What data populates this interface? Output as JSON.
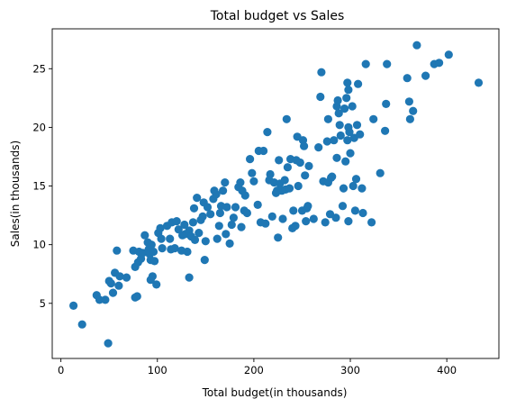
{
  "chart_data": {
    "type": "scatter",
    "title": "Total budget vs Sales",
    "xlabel": "Total budget(in thousands)",
    "ylabel": "Sales(in thousands)",
    "xlim": [
      -9,
      454
    ],
    "ylim": [
      0.3,
      28.4
    ],
    "xticks": [
      0,
      100,
      200,
      300,
      400
    ],
    "yticks": [
      5,
      10,
      15,
      20,
      25
    ],
    "grid": false,
    "marker_color": "#1f77b4",
    "points": [
      [
        13,
        4.8
      ],
      [
        22,
        3.2
      ],
      [
        37,
        5.7
      ],
      [
        40,
        5.3
      ],
      [
        46,
        5.3
      ],
      [
        49,
        1.6
      ],
      [
        50,
        6.9
      ],
      [
        52,
        6.7
      ],
      [
        54,
        5.9
      ],
      [
        56,
        7.6
      ],
      [
        58,
        9.5
      ],
      [
        60,
        6.5
      ],
      [
        61,
        7.3
      ],
      [
        68,
        7.2
      ],
      [
        75,
        9.5
      ],
      [
        77,
        8.1
      ],
      [
        77,
        5.5
      ],
      [
        79,
        5.6
      ],
      [
        80,
        8.5
      ],
      [
        81,
        9.4
      ],
      [
        83,
        8.8
      ],
      [
        85,
        9.3
      ],
      [
        87,
        10.8
      ],
      [
        90,
        10.2
      ],
      [
        91,
        9.6
      ],
      [
        92,
        9.2
      ],
      [
        93,
        7.0
      ],
      [
        93,
        8.7
      ],
      [
        94,
        10.0
      ],
      [
        95,
        7.3
      ],
      [
        96,
        9.4
      ],
      [
        97,
        8.6
      ],
      [
        99,
        6.6
      ],
      [
        101,
        11.0
      ],
      [
        103,
        11.4
      ],
      [
        104,
        10.5
      ],
      [
        105,
        9.7
      ],
      [
        110,
        11.6
      ],
      [
        113,
        10.5
      ],
      [
        114,
        9.6
      ],
      [
        115,
        11.9
      ],
      [
        118,
        9.7
      ],
      [
        120,
        12.0
      ],
      [
        122,
        11.3
      ],
      [
        125,
        9.5
      ],
      [
        126,
        10.8
      ],
      [
        128,
        11.7
      ],
      [
        129,
        10.9
      ],
      [
        131,
        9.4
      ],
      [
        133,
        11.2
      ],
      [
        133,
        7.2
      ],
      [
        135,
        10.7
      ],
      [
        137,
        11.9
      ],
      [
        138,
        13.1
      ],
      [
        139,
        10.4
      ],
      [
        141,
        14.0
      ],
      [
        143,
        11.0
      ],
      [
        145,
        12.1
      ],
      [
        147,
        12.4
      ],
      [
        148,
        13.6
      ],
      [
        149,
        8.7
      ],
      [
        150,
        10.3
      ],
      [
        152,
        13.2
      ],
      [
        155,
        12.6
      ],
      [
        158,
        13.9
      ],
      [
        159,
        14.6
      ],
      [
        161,
        14.3
      ],
      [
        162,
        10.5
      ],
      [
        164,
        11.6
      ],
      [
        165,
        12.7
      ],
      [
        166,
        13.3
      ],
      [
        168,
        14.6
      ],
      [
        170,
        15.3
      ],
      [
        171,
        10.9
      ],
      [
        172,
        13.2
      ],
      [
        175,
        10.1
      ],
      [
        177,
        11.7
      ],
      [
        179,
        12.3
      ],
      [
        181,
        13.2
      ],
      [
        184,
        14.9
      ],
      [
        186,
        15.3
      ],
      [
        187,
        11.5
      ],
      [
        188,
        14.6
      ],
      [
        190,
        12.9
      ],
      [
        191,
        14.2
      ],
      [
        193,
        12.7
      ],
      [
        196,
        17.3
      ],
      [
        198,
        16.1
      ],
      [
        200,
        15.4
      ],
      [
        204,
        13.4
      ],
      [
        205,
        18.0
      ],
      [
        207,
        11.9
      ],
      [
        210,
        18.0
      ],
      [
        212,
        11.8
      ],
      [
        214,
        19.6
      ],
      [
        216,
        15.5
      ],
      [
        217,
        16.0
      ],
      [
        219,
        12.4
      ],
      [
        221,
        15.3
      ],
      [
        223,
        14.4
      ],
      [
        224,
        14.6
      ],
      [
        225,
        10.6
      ],
      [
        226,
        17.2
      ],
      [
        227,
        15.2
      ],
      [
        229,
        14.6
      ],
      [
        230,
        12.2
      ],
      [
        232,
        15.5
      ],
      [
        233,
        14.7
      ],
      [
        234,
        20.7
      ],
      [
        235,
        16.6
      ],
      [
        237,
        14.8
      ],
      [
        238,
        17.3
      ],
      [
        240,
        11.4
      ],
      [
        241,
        12.9
      ],
      [
        243,
        11.6
      ],
      [
        244,
        17.2
      ],
      [
        245,
        19.2
      ],
      [
        246,
        15.0
      ],
      [
        248,
        17.0
      ],
      [
        250,
        12.9
      ],
      [
        251,
        18.9
      ],
      [
        252,
        18.4
      ],
      [
        253,
        15.9
      ],
      [
        254,
        12.0
      ],
      [
        255,
        13.1
      ],
      [
        256,
        13.3
      ],
      [
        257,
        16.7
      ],
      [
        262,
        12.2
      ],
      [
        267,
        18.3
      ],
      [
        269,
        22.6
      ],
      [
        270,
        24.7
      ],
      [
        272,
        15.4
      ],
      [
        274,
        11.9
      ],
      [
        276,
        18.8
      ],
      [
        277,
        15.3
      ],
      [
        277,
        20.7
      ],
      [
        279,
        12.6
      ],
      [
        280,
        15.7
      ],
      [
        281,
        15.8
      ],
      [
        283,
        18.9
      ],
      [
        285,
        12.3
      ],
      [
        286,
        17.4
      ],
      [
        286,
        21.8
      ],
      [
        287,
        22.3
      ],
      [
        288,
        21.2
      ],
      [
        289,
        20.2
      ],
      [
        290,
        19.3
      ],
      [
        292,
        13.3
      ],
      [
        293,
        14.8
      ],
      [
        294,
        21.6
      ],
      [
        295,
        17.1
      ],
      [
        296,
        22.5
      ],
      [
        297,
        23.8
      ],
      [
        297,
        18.9
      ],
      [
        298,
        23.2
      ],
      [
        298,
        20.0
      ],
      [
        298,
        12.0
      ],
      [
        299,
        19.6
      ],
      [
        300,
        17.8
      ],
      [
        302,
        21.8
      ],
      [
        303,
        15.0
      ],
      [
        304,
        19.1
      ],
      [
        305,
        12.9
      ],
      [
        306,
        15.6
      ],
      [
        307,
        20.2
      ],
      [
        308,
        23.7
      ],
      [
        310,
        19.4
      ],
      [
        312,
        14.8
      ],
      [
        313,
        12.7
      ],
      [
        316,
        25.4
      ],
      [
        322,
        11.9
      ],
      [
        324,
        20.7
      ],
      [
        331,
        16.1
      ],
      [
        336,
        19.7
      ],
      [
        337,
        22.0
      ],
      [
        338,
        25.4
      ],
      [
        359,
        24.2
      ],
      [
        361,
        22.2
      ],
      [
        362,
        20.7
      ],
      [
        365,
        21.4
      ],
      [
        369,
        27.0
      ],
      [
        378,
        24.4
      ],
      [
        387,
        25.4
      ],
      [
        392,
        25.5
      ],
      [
        402,
        26.2
      ],
      [
        433,
        23.8
      ]
    ]
  }
}
